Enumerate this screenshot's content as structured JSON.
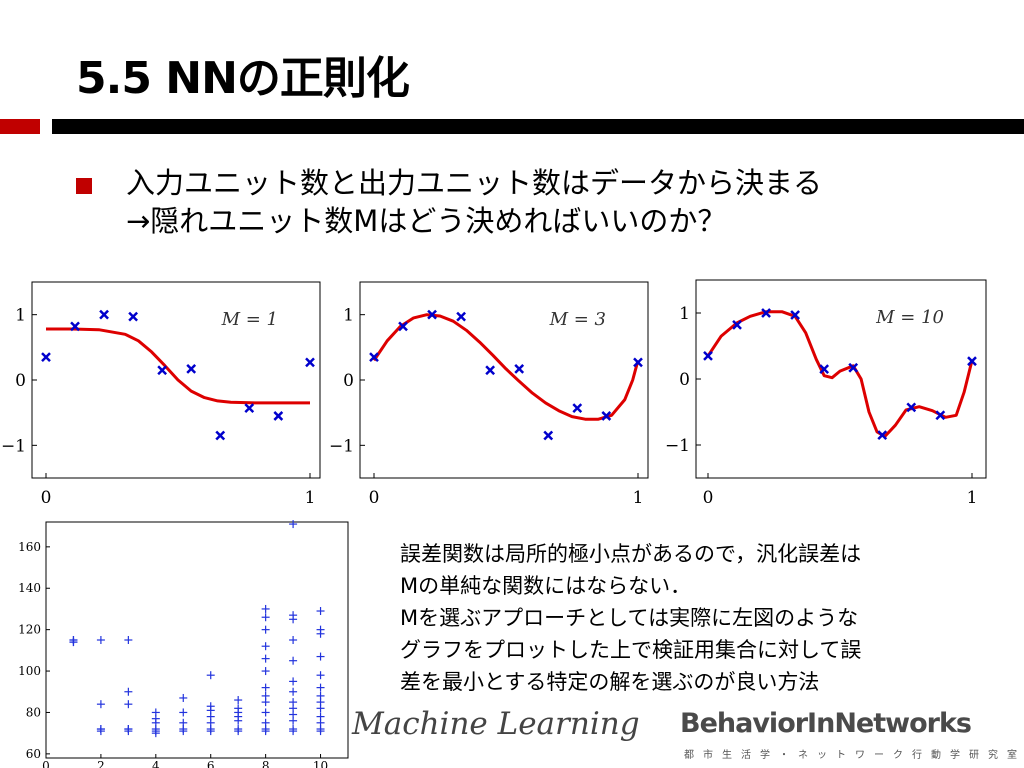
{
  "slide": {
    "title": "5.5 NNの正則化",
    "bullet_line1": "入力ユニット数と出力ユニット数はデータから決まる",
    "bullet_line2": "→隠れユニット数Mはどう決めればいいのか？",
    "note_lines": [
      "誤差関数は局所的極小点があるので，汎化誤差は",
      "Mの単純な関数にはならない．",
      "Mを選ぶアプローチとしては実際に左図のような",
      "グラフをプロットした上で検証用集合に対して誤",
      "差を最小とする特定の解を選ぶのが良い方法"
    ],
    "footer_left": "Machine Learning",
    "footer_right": "BehaviorInNetworks",
    "footer_right_sub": "都市生活学・ネットワーク行動学研究室",
    "colors": {
      "accent_red": "#c00000",
      "bar_black": "#000000",
      "curve_red": "#dd0000",
      "point_blue": "#0000cc",
      "plus_blue": "#2233dd"
    }
  },
  "chart_data": [
    {
      "type": "line",
      "annotation": "M = 1",
      "xlim": [
        0,
        1
      ],
      "ylim": [
        -1.5,
        1.5
      ],
      "xticks": [
        "0",
        "1"
      ],
      "yticks": [
        "1",
        "0",
        "−1"
      ],
      "points": [
        [
          0.0,
          0.35
        ],
        [
          0.11,
          0.82
        ],
        [
          0.22,
          1.0
        ],
        [
          0.33,
          0.97
        ],
        [
          0.44,
          0.15
        ],
        [
          0.55,
          0.17
        ],
        [
          0.66,
          -0.85
        ],
        [
          0.77,
          -0.43
        ],
        [
          0.88,
          -0.55
        ],
        [
          1.0,
          0.27
        ]
      ],
      "curve": [
        [
          0.0,
          0.78
        ],
        [
          0.1,
          0.78
        ],
        [
          0.2,
          0.77
        ],
        [
          0.3,
          0.7
        ],
        [
          0.35,
          0.6
        ],
        [
          0.4,
          0.43
        ],
        [
          0.45,
          0.22
        ],
        [
          0.5,
          0.0
        ],
        [
          0.55,
          -0.17
        ],
        [
          0.6,
          -0.27
        ],
        [
          0.65,
          -0.32
        ],
        [
          0.7,
          -0.34
        ],
        [
          0.8,
          -0.35
        ],
        [
          0.9,
          -0.35
        ],
        [
          1.0,
          -0.35
        ]
      ]
    },
    {
      "type": "line",
      "annotation": "M = 3",
      "xlim": [
        0,
        1
      ],
      "ylim": [
        -1.5,
        1.5
      ],
      "xticks": [
        "0",
        "1"
      ],
      "yticks": [
        "1",
        "0",
        "−1"
      ],
      "points": [
        [
          0.0,
          0.35
        ],
        [
          0.11,
          0.82
        ],
        [
          0.22,
          1.0
        ],
        [
          0.33,
          0.97
        ],
        [
          0.44,
          0.15
        ],
        [
          0.55,
          0.17
        ],
        [
          0.66,
          -0.85
        ],
        [
          0.77,
          -0.43
        ],
        [
          0.88,
          -0.55
        ],
        [
          1.0,
          0.27
        ]
      ],
      "curve": [
        [
          0.0,
          0.3
        ],
        [
          0.05,
          0.6
        ],
        [
          0.1,
          0.82
        ],
        [
          0.15,
          0.95
        ],
        [
          0.2,
          1.0
        ],
        [
          0.25,
          0.98
        ],
        [
          0.3,
          0.9
        ],
        [
          0.35,
          0.76
        ],
        [
          0.4,
          0.58
        ],
        [
          0.45,
          0.38
        ],
        [
          0.5,
          0.17
        ],
        [
          0.55,
          -0.02
        ],
        [
          0.6,
          -0.2
        ],
        [
          0.65,
          -0.35
        ],
        [
          0.7,
          -0.47
        ],
        [
          0.75,
          -0.56
        ],
        [
          0.8,
          -0.6
        ],
        [
          0.85,
          -0.6
        ],
        [
          0.9,
          -0.54
        ],
        [
          0.95,
          -0.3
        ],
        [
          0.98,
          0.0
        ],
        [
          1.0,
          0.3
        ]
      ]
    },
    {
      "type": "line",
      "annotation": "M = 10",
      "xlim": [
        0,
        1
      ],
      "ylim": [
        -1.5,
        1.5
      ],
      "xticks": [
        "0",
        "1"
      ],
      "yticks": [
        "1",
        "0",
        "−1"
      ],
      "points": [
        [
          0.0,
          0.35
        ],
        [
          0.11,
          0.82
        ],
        [
          0.22,
          1.0
        ],
        [
          0.33,
          0.97
        ],
        [
          0.44,
          0.15
        ],
        [
          0.55,
          0.17
        ],
        [
          0.66,
          -0.85
        ],
        [
          0.77,
          -0.43
        ],
        [
          0.88,
          -0.55
        ],
        [
          1.0,
          0.27
        ]
      ],
      "curve": [
        [
          0.0,
          0.35
        ],
        [
          0.05,
          0.65
        ],
        [
          0.11,
          0.85
        ],
        [
          0.16,
          0.95
        ],
        [
          0.22,
          1.02
        ],
        [
          0.28,
          1.02
        ],
        [
          0.33,
          0.95
        ],
        [
          0.37,
          0.7
        ],
        [
          0.41,
          0.3
        ],
        [
          0.44,
          0.05
        ],
        [
          0.47,
          0.02
        ],
        [
          0.5,
          0.12
        ],
        [
          0.55,
          0.2
        ],
        [
          0.58,
          0.0
        ],
        [
          0.61,
          -0.5
        ],
        [
          0.64,
          -0.8
        ],
        [
          0.67,
          -0.87
        ],
        [
          0.71,
          -0.7
        ],
        [
          0.75,
          -0.47
        ],
        [
          0.8,
          -0.42
        ],
        [
          0.85,
          -0.48
        ],
        [
          0.9,
          -0.58
        ],
        [
          0.94,
          -0.55
        ],
        [
          0.97,
          -0.2
        ],
        [
          1.0,
          0.28
        ]
      ]
    },
    {
      "type": "scatter",
      "marker": "+",
      "xlim": [
        0,
        11
      ],
      "ylim": [
        58,
        172
      ],
      "xticks": [
        "0",
        "2",
        "4",
        "6",
        "8",
        "10"
      ],
      "yticks": [
        "60",
        "80",
        "100",
        "120",
        "140",
        "160"
      ],
      "points": [
        [
          1,
          115
        ],
        [
          1,
          114
        ],
        [
          1,
          115
        ],
        [
          1,
          114
        ],
        [
          2,
          115
        ],
        [
          2,
          84
        ],
        [
          2,
          72
        ],
        [
          2,
          71
        ],
        [
          2,
          72
        ],
        [
          3,
          115
        ],
        [
          3,
          90
        ],
        [
          3,
          84
        ],
        [
          3,
          72
        ],
        [
          3,
          71
        ],
        [
          3,
          72
        ],
        [
          4,
          80
        ],
        [
          4,
          77
        ],
        [
          4,
          75
        ],
        [
          4,
          72
        ],
        [
          4,
          71
        ],
        [
          4,
          70
        ],
        [
          5,
          87
        ],
        [
          5,
          80
        ],
        [
          5,
          75
        ],
        [
          5,
          72
        ],
        [
          5,
          71
        ],
        [
          6,
          98
        ],
        [
          6,
          83
        ],
        [
          6,
          81
        ],
        [
          6,
          78
        ],
        [
          6,
          75
        ],
        [
          6,
          72
        ],
        [
          6,
          71
        ],
        [
          7,
          86
        ],
        [
          7,
          82
        ],
        [
          7,
          80
        ],
        [
          7,
          78
        ],
        [
          7,
          76
        ],
        [
          7,
          72
        ],
        [
          7,
          71
        ],
        [
          8,
          130
        ],
        [
          8,
          126
        ],
        [
          8,
          120
        ],
        [
          8,
          112
        ],
        [
          8,
          106
        ],
        [
          8,
          100
        ],
        [
          8,
          92
        ],
        [
          8,
          88
        ],
        [
          8,
          85
        ],
        [
          8,
          80
        ],
        [
          8,
          75
        ],
        [
          8,
          72
        ],
        [
          8,
          71
        ],
        [
          9,
          171
        ],
        [
          9,
          127
        ],
        [
          9,
          125
        ],
        [
          9,
          115
        ],
        [
          9,
          105
        ],
        [
          9,
          95
        ],
        [
          9,
          90
        ],
        [
          9,
          85
        ],
        [
          9,
          82
        ],
        [
          9,
          79
        ],
        [
          9,
          76
        ],
        [
          9,
          72
        ],
        [
          9,
          71
        ],
        [
          10,
          129
        ],
        [
          10,
          120
        ],
        [
          10,
          118
        ],
        [
          10,
          107
        ],
        [
          10,
          98
        ],
        [
          10,
          92
        ],
        [
          10,
          88
        ],
        [
          10,
          85
        ],
        [
          10,
          82
        ],
        [
          10,
          78
        ],
        [
          10,
          75
        ],
        [
          10,
          72
        ],
        [
          10,
          71
        ]
      ]
    }
  ]
}
